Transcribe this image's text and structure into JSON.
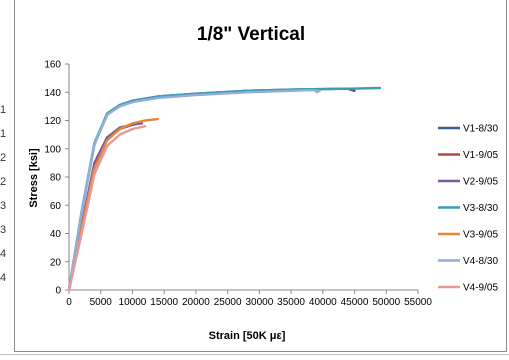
{
  "chart_data": {
    "type": "line",
    "title": "1/8\" Vertical",
    "xlabel": "Strain [50K με]",
    "ylabel": "Stress [ksi]",
    "xlim": [
      0,
      55000
    ],
    "ylim": [
      0,
      160
    ],
    "xticks": [
      0,
      5000,
      10000,
      15000,
      20000,
      25000,
      30000,
      35000,
      40000,
      45000,
      50000,
      55000
    ],
    "yticks": [
      0,
      20,
      40,
      60,
      80,
      100,
      120,
      140,
      160
    ],
    "grid": false,
    "legend_position": "right",
    "series": [
      {
        "name": "V1-8/30",
        "color": "#3a5f94",
        "x": [
          0,
          2000,
          4000,
          6000,
          8000,
          10000,
          14000,
          20000,
          28000,
          36000,
          44000,
          44800,
          45000,
          44200
        ],
        "y": [
          0,
          55,
          103,
          124,
          131,
          134,
          137,
          139,
          141,
          142,
          142.5,
          142.5,
          141,
          142
        ]
      },
      {
        "name": "V1-9/05",
        "color": "#b24a44",
        "x": [
          0,
          2000,
          4000,
          6000,
          8000,
          10000,
          11000
        ],
        "y": [
          0,
          45,
          88,
          107,
          114,
          117,
          118
        ]
      },
      {
        "name": "V2-9/05",
        "color": "#7a5aa0",
        "x": [
          0,
          2000,
          4000,
          6000,
          8000,
          10000,
          11500
        ],
        "y": [
          0,
          46,
          90,
          108,
          115,
          117,
          118
        ]
      },
      {
        "name": "V3-8/30",
        "color": "#3b9cb8",
        "x": [
          0,
          2000,
          4000,
          6000,
          8000,
          10000,
          14000,
          20000,
          28000,
          36000,
          44000,
          49000
        ],
        "y": [
          0,
          56,
          104,
          125,
          131,
          134,
          137,
          139,
          141,
          142,
          142.5,
          143
        ]
      },
      {
        "name": "V3-9/05",
        "color": "#e5883a",
        "x": [
          0,
          2000,
          4000,
          6000,
          8000,
          10000,
          12000,
          14000
        ],
        "y": [
          0,
          44,
          86,
          106,
          114,
          118,
          120,
          121
        ]
      },
      {
        "name": "V4-8/30",
        "color": "#94aed6",
        "x": [
          0,
          2000,
          4000,
          6000,
          8000,
          10000,
          14000,
          20000,
          28000,
          35000,
          38000,
          39500,
          39000
        ],
        "y": [
          0,
          55,
          103,
          124,
          130,
          133,
          136,
          138,
          140,
          141,
          141.5,
          141,
          140
        ]
      },
      {
        "name": "V4-9/05",
        "color": "#e49a99",
        "x": [
          0,
          2000,
          4000,
          6000,
          8000,
          10000,
          12000
        ],
        "y": [
          0,
          40,
          82,
          102,
          110,
          114,
          116
        ]
      }
    ]
  }
}
